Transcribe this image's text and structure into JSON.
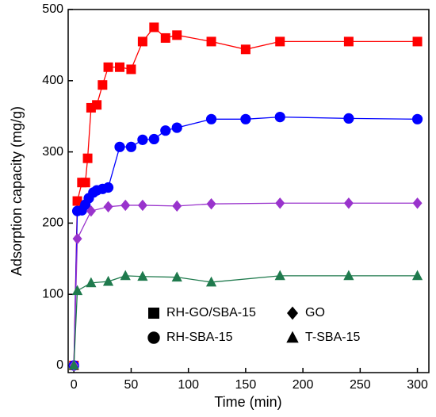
{
  "chart_data": {
    "type": "line",
    "x_label": "Time (min)",
    "y_label": "Adsorption capacity (mg/g)",
    "xlim": [
      -5,
      310
    ],
    "ylim": [
      -10,
      500
    ],
    "xticks": [
      0,
      50,
      100,
      150,
      200,
      250,
      300
    ],
    "yticks": [
      0,
      100,
      200,
      300,
      400,
      500
    ],
    "legend_position": "lower",
    "series": [
      {
        "name": "RH-GO/SBA-15",
        "color": "#ff0000",
        "marker": "square",
        "x": [
          0,
          3,
          7,
          10,
          12,
          15,
          20,
          25,
          30,
          40,
          50,
          60,
          70,
          80,
          90,
          120,
          150,
          180,
          240,
          300
        ],
        "values": [
          0,
          231,
          257,
          257,
          291,
          362,
          366,
          394,
          419,
          419,
          416,
          455,
          475,
          460,
          464,
          455,
          444,
          455,
          455,
          455
        ]
      },
      {
        "name": "RH-SBA-15",
        "color": "#0000ff",
        "marker": "circle",
        "x": [
          0,
          3,
          7,
          10,
          13,
          17,
          20,
          25,
          30,
          40,
          50,
          60,
          70,
          80,
          90,
          120,
          150,
          180,
          240,
          300
        ],
        "values": [
          0,
          217,
          218,
          226,
          235,
          243,
          246,
          248,
          250,
          307,
          307,
          317,
          318,
          330,
          334,
          346,
          346,
          349,
          347,
          346
        ]
      },
      {
        "name": "GO",
        "color": "#9933cc",
        "marker": "diamond",
        "x": [
          0,
          3,
          15,
          30,
          45,
          60,
          90,
          120,
          180,
          240,
          300
        ],
        "values": [
          0,
          178,
          217,
          223,
          225,
          225,
          224,
          227,
          228,
          228,
          228
        ]
      },
      {
        "name": "T-SBA-15",
        "color": "#1f7a4d",
        "marker": "triangle",
        "x": [
          0,
          3,
          15,
          30,
          45,
          60,
          90,
          120,
          180,
          240,
          300
        ],
        "values": [
          0,
          105,
          116,
          118,
          126,
          125,
          124,
          117,
          126,
          126,
          126
        ]
      }
    ]
  }
}
